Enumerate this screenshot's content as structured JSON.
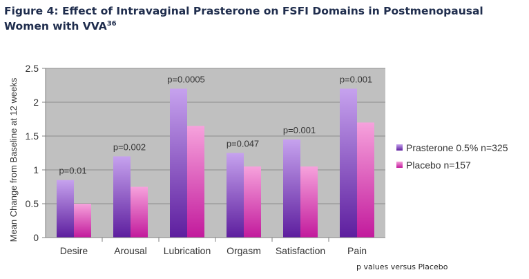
{
  "title": {
    "main": "Figure 4: Effect of Intravaginal Prasterone on FSFI Domains in Postmenopausal Women with VVA",
    "superscript": "36"
  },
  "footnote": "p values versus Placebo",
  "chart_data": {
    "type": "bar",
    "categories": [
      "Desire",
      "Arousal",
      "Lubrication",
      "Orgasm",
      "Satisfaction",
      "Pain"
    ],
    "series": [
      {
        "name": "Prasterone 0.5% n=325",
        "values": [
          0.85,
          1.2,
          2.2,
          1.25,
          1.45,
          2.2
        ],
        "color_top": "#c6a2ee",
        "color_bottom": "#5d1e9e"
      },
      {
        "name": "Placebo n=157",
        "values": [
          0.5,
          0.75,
          1.65,
          1.05,
          1.05,
          1.7
        ],
        "color_top": "#f6a2dc",
        "color_bottom": "#c21a9c"
      }
    ],
    "annotations": [
      "p=0.01",
      "p=0.002",
      "p=0.0005",
      "p=0.047",
      "p=0.001",
      "p=0.001"
    ],
    "xlabel": "",
    "ylabel": "Mean Change from Baseline at 12 weeks",
    "ylim": [
      0,
      2.5
    ],
    "yticks": [
      "0",
      "0.5",
      "1",
      "1.5",
      "2",
      "2.5"
    ],
    "grid": true,
    "legend_position": "right",
    "plot_background": "#c0c0c0"
  }
}
